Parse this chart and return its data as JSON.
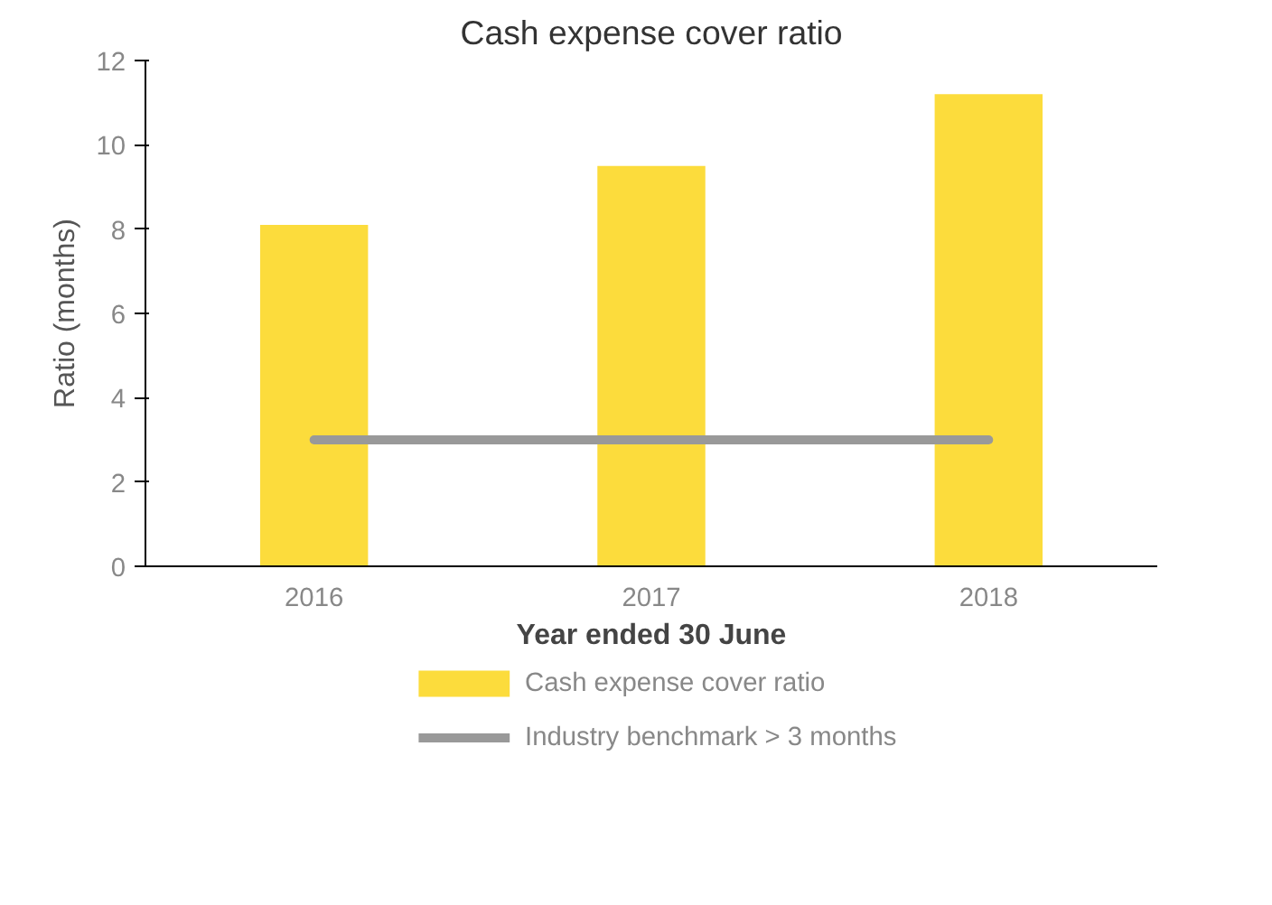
{
  "chart_data": {
    "type": "bar",
    "title": "Cash expense cover ratio",
    "xlabel": "Year ended 30 June",
    "ylabel": "Ratio (months)",
    "categories": [
      "2016",
      "2017",
      "2018"
    ],
    "series": [
      {
        "name": "Cash expense cover ratio",
        "color": "#fcdc3c",
        "values": [
          8.1,
          9.5,
          11.2
        ]
      },
      {
        "name": "Industry benchmark > 3 months",
        "type": "line",
        "color": "#999999",
        "values": [
          3,
          3,
          3
        ]
      }
    ],
    "ylim": [
      0,
      12
    ],
    "yticks": [
      0,
      2,
      4,
      6,
      8,
      10,
      12
    ],
    "grid": false,
    "legend": "bottom"
  }
}
